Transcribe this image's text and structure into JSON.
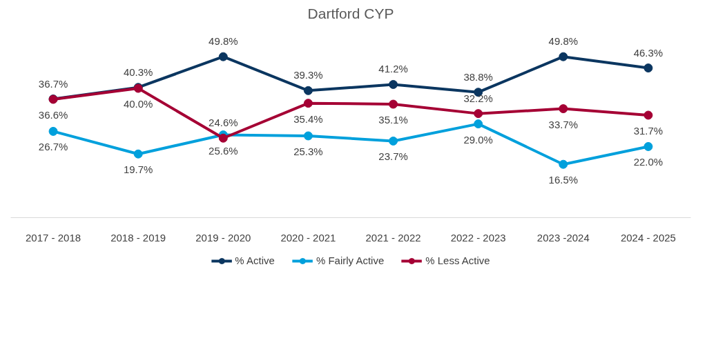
{
  "chart_data": {
    "type": "line",
    "title": "Dartford CYP",
    "categories": [
      "2017 - 2018",
      "2018 - 2019",
      "2019 - 2020",
      "2020 - 2021",
      "2021 - 2022",
      "2022 - 2023",
      "2023 -2024",
      "2024 - 2025"
    ],
    "series": [
      {
        "name": "% Active",
        "color": "#0b3660",
        "values": [
          36.7,
          40.3,
          49.8,
          39.3,
          41.2,
          38.8,
          49.8,
          46.3
        ],
        "value_labels": [
          "36.7%",
          "40.3%",
          "49.8%",
          "39.3%",
          "41.2%",
          "38.8%",
          "49.8%",
          "46.3%"
        ]
      },
      {
        "name": "% Fairly Active",
        "color": "#00a0dc",
        "values": [
          26.7,
          19.7,
          25.6,
          25.3,
          23.7,
          29.0,
          16.5,
          22.0
        ],
        "value_labels": [
          "26.7%",
          "19.7%",
          "25.6%",
          "25.3%",
          "23.7%",
          "29.0%",
          "16.5%",
          "22.0%"
        ]
      },
      {
        "name": "% Less Active",
        "color": "#a50034",
        "values": [
          36.6,
          40.0,
          24.6,
          35.4,
          35.1,
          32.2,
          33.7,
          31.7
        ],
        "value_labels": [
          "36.6%",
          "40.0%",
          "24.6%",
          "35.4%",
          "35.1%",
          "32.2%",
          "33.7%",
          "31.7%"
        ]
      }
    ],
    "tick_labels": "x",
    "grid": false,
    "legend": "bottom",
    "marker": "circle",
    "line_style": "solid"
  }
}
